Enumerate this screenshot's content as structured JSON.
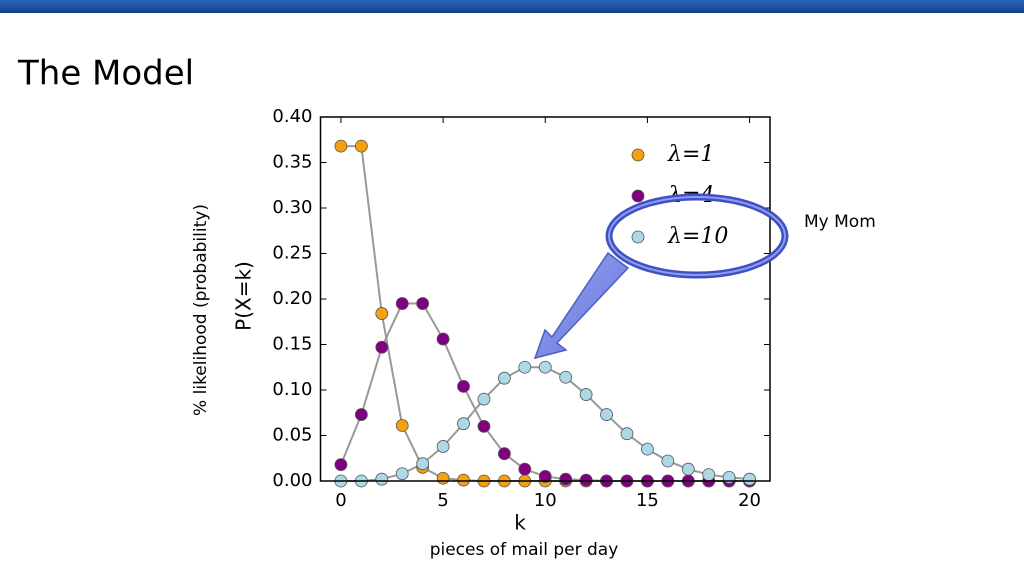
{
  "slide": {
    "title": "The Model"
  },
  "chart_data": {
    "type": "line",
    "x_label": "k",
    "y_label": "P(X=k)",
    "annotations": [
      "% likelihood (probability)",
      "pieces of mail per day",
      "My Mom"
    ],
    "x": [
      0,
      1,
      2,
      3,
      4,
      5,
      6,
      7,
      8,
      9,
      10,
      11,
      12,
      13,
      14,
      15,
      16,
      17,
      18,
      19,
      20
    ],
    "series": [
      {
        "name": "λ=1",
        "color": "#f5a00f",
        "values": [
          0.368,
          0.368,
          0.184,
          0.061,
          0.015,
          0.003,
          0.001,
          0,
          0,
          0,
          0,
          0,
          0,
          0,
          0,
          0,
          0,
          0,
          0,
          0,
          0
        ]
      },
      {
        "name": "λ=4",
        "color": "#800080",
        "values": [
          0.018,
          0.073,
          0.147,
          0.195,
          0.195,
          0.156,
          0.104,
          0.06,
          0.03,
          0.013,
          0.005,
          0.002,
          0.001,
          0,
          0,
          0,
          0,
          0,
          0,
          0,
          0
        ]
      },
      {
        "name": "λ=10",
        "color": "#add8e6",
        "values": [
          0,
          0,
          0.002,
          0.008,
          0.019,
          0.038,
          0.063,
          0.09,
          0.113,
          0.125,
          0.125,
          0.114,
          0.095,
          0.073,
          0.052,
          0.035,
          0.022,
          0.013,
          0.007,
          0.004,
          0.002
        ]
      }
    ],
    "line_color": "#999999",
    "xlim": [
      -1,
      21
    ],
    "xticks": [
      0,
      5,
      10,
      15,
      20
    ],
    "ylim": [
      0,
      0.4
    ],
    "yticks": [
      {
        "value": 0,
        "label": "0.00"
      },
      {
        "value": 0.05,
        "label": "0.05"
      },
      {
        "value": 0.1,
        "label": "0.10"
      },
      {
        "value": 0.15,
        "label": "0.15"
      },
      {
        "value": 0.2,
        "label": "0.20"
      },
      {
        "value": 0.25,
        "label": "0.25"
      },
      {
        "value": 0.3,
        "label": "0.30"
      },
      {
        "value": 0.35,
        "label": "0.35"
      },
      {
        "value": 0.4,
        "label": "0.40"
      }
    ],
    "legend": "upper right",
    "grid": false
  }
}
